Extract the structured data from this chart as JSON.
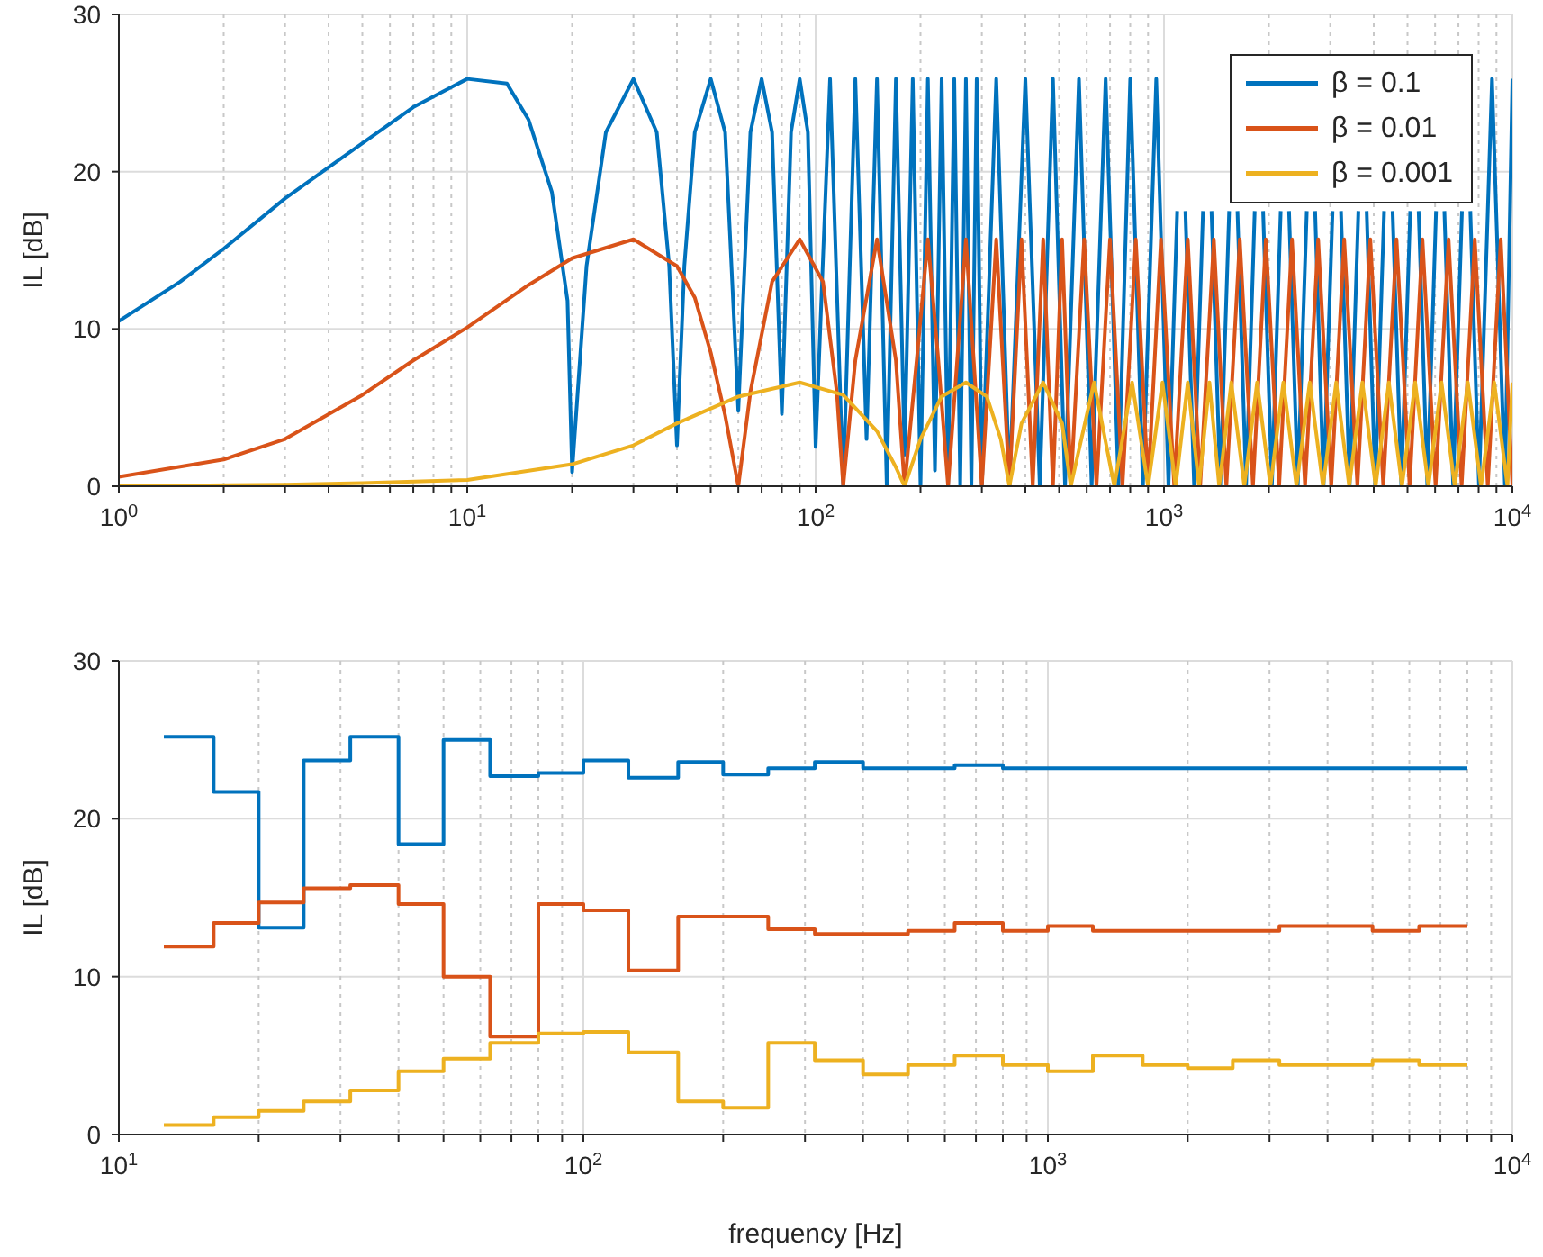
{
  "chart_data": [
    {
      "type": "line",
      "ylabel": "IL [dB]",
      "log": "x",
      "grid": true,
      "legend": "top right",
      "xlim": [
        1,
        10000
      ],
      "ylim": [
        0,
        30
      ],
      "yticks": [
        0,
        10,
        20,
        30
      ],
      "xticks": [
        {
          "value": 1,
          "label": "10$^{0}$"
        },
        {
          "value": 2,
          "label": null
        },
        {
          "value": 3,
          "label": null
        },
        {
          "value": 4,
          "label": null
        },
        {
          "value": 5,
          "label": null
        },
        {
          "value": 6,
          "label": null
        },
        {
          "value": 7,
          "label": null
        },
        {
          "value": 8,
          "label": null
        },
        {
          "value": 9,
          "label": null
        },
        {
          "value": 10,
          "label": "10$^{1}$"
        },
        {
          "value": 20,
          "label": null
        },
        {
          "value": 30,
          "label": null
        },
        {
          "value": 40,
          "label": null
        },
        {
          "value": 50,
          "label": null
        },
        {
          "value": 60,
          "label": null
        },
        {
          "value": 70,
          "label": null
        },
        {
          "value": 80,
          "label": null
        },
        {
          "value": 90,
          "label": null
        },
        {
          "value": 100,
          "label": "10$^{2}$"
        },
        {
          "value": 200,
          "label": null
        },
        {
          "value": 300,
          "label": null
        },
        {
          "value": 400,
          "label": null
        },
        {
          "value": 500,
          "label": null
        },
        {
          "value": 600,
          "label": null
        },
        {
          "value": 700,
          "label": null
        },
        {
          "value": 800,
          "label": null
        },
        {
          "value": 900,
          "label": null
        },
        {
          "value": 1000,
          "label": "10$^{3}$"
        },
        {
          "value": 2000,
          "label": null
        },
        {
          "value": 3000,
          "label": null
        },
        {
          "value": 4000,
          "label": null
        },
        {
          "value": 5000,
          "label": null
        },
        {
          "value": 6000,
          "label": null
        },
        {
          "value": 7000,
          "label": null
        },
        {
          "value": 8000,
          "label": null
        },
        {
          "value": 9000,
          "label": null
        },
        {
          "value": 10000,
          "label": "10$^{4}$"
        }
      ],
      "series": [
        {
          "name": "β = 0.1",
          "color": "#0072bd",
          "x": [
            1,
            1.5,
            2,
            3,
            5,
            7,
            10,
            13,
            15,
            17.5,
            19.4,
            20,
            22,
            25,
            30,
            35,
            38,
            40,
            42,
            45,
            50,
            55,
            60,
            65,
            70,
            75,
            80,
            85,
            90,
            95,
            100,
            110,
            120,
            130,
            140,
            150,
            160,
            170,
            180,
            190,
            200,
            210,
            220,
            230,
            240,
            250,
            260,
            270,
            280,
            290,
            300,
            330,
            360,
            400,
            440,
            480,
            520,
            570,
            620,
            680,
            740,
            800,
            870,
            950,
            1030,
            1091,
            1120,
            1152,
            1220,
            1294,
            1330,
            1369,
            1450,
            1538,
            1580,
            1625,
            1720,
            1821,
            1870,
            1925,
            2040,
            2162,
            2220,
            2285,
            2420,
            2569,
            2640,
            2715,
            2870,
            3046,
            3130,
            3221,
            3410,
            3613,
            3710,
            3817,
            4040,
            4283,
            4400,
            4530,
            4800,
            5091,
            5230,
            5382,
            5700,
            6038,
            6200,
            6381,
            6760,
            7166,
            7360,
            7574,
            8020,
            8740,
            9520,
            10000
          ],
          "values": [
            10.5,
            13,
            15.1,
            18.3,
            21.8,
            24.1,
            25.9,
            25.6,
            23.3,
            18.7,
            11.8,
            0.9,
            14,
            22.5,
            25.9,
            22.5,
            14,
            2.6,
            14,
            22.5,
            25.9,
            22.5,
            4.8,
            22.5,
            25.9,
            22.5,
            4.6,
            22.5,
            25.9,
            22.5,
            2.5,
            25.9,
            0,
            25.9,
            3,
            25.9,
            0,
            25.9,
            2,
            25.9,
            0,
            25.9,
            1,
            25.9,
            0,
            25.9,
            0,
            25.9,
            0,
            25.9,
            0,
            25.9,
            0,
            25.9,
            0,
            25.9,
            0,
            25.9,
            0,
            25.9,
            0,
            25.9,
            0,
            25.9,
            0,
            17.5,
            null,
            17.5,
            0,
            17.5,
            null,
            17.5,
            0,
            17.5,
            null,
            17.5,
            0,
            17.5,
            null,
            17.5,
            0,
            17.5,
            null,
            17.5,
            0,
            17.5,
            null,
            17.5,
            0,
            17.5,
            null,
            17.5,
            0,
            17.5,
            null,
            17.5,
            0,
            17.5,
            null,
            17.5,
            0,
            17.5,
            null,
            17.5,
            0,
            17.5,
            null,
            17.5,
            0,
            17.5,
            null,
            17.5,
            0,
            25.9,
            0,
            25.9
          ]
        },
        {
          "name": "β = 0.01",
          "color": "#d95319",
          "x": [
            1,
            2,
            3,
            5,
            7,
            10,
            15,
            20,
            30,
            40,
            45,
            50,
            55,
            60,
            65,
            75,
            90,
            105,
            115,
            120,
            130,
            150,
            170,
            180,
            195,
            210,
            225,
            240,
            270,
            300,
            330,
            360,
            390,
            420,
            450,
            480,
            510,
            540,
            590,
            640,
            700,
            760,
            830,
            900,
            980,
            1070,
            1170,
            1270,
            1390,
            1510,
            1650,
            1800,
            1960,
            2140,
            2330,
            2540,
            2770,
            3020,
            3290,
            3590,
            3910,
            4260,
            4650,
            5070,
            5520,
            6020,
            6560,
            7150,
            7800,
            8500,
            9260,
            10000
          ],
          "values": [
            0.6,
            1.7,
            3,
            5.8,
            8,
            10.1,
            12.8,
            14.5,
            15.7,
            14,
            12,
            8.5,
            4.5,
            0,
            6,
            13,
            15.7,
            13,
            6,
            0,
            8,
            15.7,
            8,
            0,
            8,
            15.7,
            8,
            0,
            15.7,
            0,
            15.7,
            0,
            15.7,
            0,
            15.7,
            0,
            15.7,
            0,
            15.7,
            0,
            15.7,
            0,
            15.7,
            0,
            15.7,
            0,
            15.7,
            0,
            15.7,
            0,
            15.7,
            0,
            15.7,
            0,
            15.7,
            0,
            15.7,
            0,
            15.7,
            0,
            15.7,
            0,
            15.7,
            0,
            15.7,
            0,
            15.7,
            0,
            15.7,
            0,
            15.7,
            0
          ]
        },
        {
          "name": "β = 0.001",
          "color": "#edb120",
          "x": [
            1,
            3,
            5,
            10,
            20,
            30,
            40,
            60,
            90,
            120,
            150,
            170,
            180,
            200,
            230,
            270,
            310,
            340,
            360,
            390,
            450,
            510,
            540,
            630,
            720,
            810,
            900,
            990,
            1080,
            1170,
            1260,
            1350,
            1440,
            1560,
            1700,
            1850,
            2020,
            2200,
            2400,
            2620,
            2860,
            3120,
            3400,
            3710,
            4050,
            4420,
            4820,
            5260,
            5740,
            6260,
            6830,
            7450,
            8130,
            8870,
            9680,
            10000
          ],
          "values": [
            0,
            0.1,
            0.2,
            0.4,
            1.4,
            2.6,
            4,
            5.7,
            6.6,
            5.8,
            3.5,
            1.2,
            0,
            3,
            5.7,
            6.6,
            5.7,
            3,
            0,
            4,
            6.6,
            4,
            0,
            6.6,
            0,
            6.6,
            0,
            6.6,
            0,
            6.6,
            0,
            6.6,
            0,
            6.6,
            0,
            6.6,
            0,
            6.6,
            0,
            6.6,
            0,
            6.6,
            0,
            6.6,
            0,
            6.6,
            0,
            6.6,
            0,
            6.6,
            0,
            6.6,
            0,
            6.6,
            0,
            6.6
          ]
        }
      ]
    },
    {
      "type": "step",
      "xlabel": "frequency [Hz]",
      "ylabel": "IL [dB]",
      "log": "x",
      "grid": true,
      "xlim": [
        10,
        10000
      ],
      "ylim": [
        0,
        30
      ],
      "yticks": [
        0,
        10,
        20,
        30
      ],
      "xticks": [
        {
          "value": 10,
          "label": "10$^{1}$"
        },
        {
          "value": 20,
          "label": null
        },
        {
          "value": 30,
          "label": null
        },
        {
          "value": 40,
          "label": null
        },
        {
          "value": 50,
          "label": null
        },
        {
          "value": 60,
          "label": null
        },
        {
          "value": 70,
          "label": null
        },
        {
          "value": 80,
          "label": null
        },
        {
          "value": 90,
          "label": null
        },
        {
          "value": 100,
          "label": "10$^{2}$"
        },
        {
          "value": 200,
          "label": null
        },
        {
          "value": 300,
          "label": null
        },
        {
          "value": 400,
          "label": null
        },
        {
          "value": 500,
          "label": null
        },
        {
          "value": 600,
          "label": null
        },
        {
          "value": 700,
          "label": null
        },
        {
          "value": 800,
          "label": null
        },
        {
          "value": 900,
          "label": null
        },
        {
          "value": 1000,
          "label": "10$^{3}$"
        },
        {
          "value": 2000,
          "label": null
        },
        {
          "value": 3000,
          "label": null
        },
        {
          "value": 4000,
          "label": null
        },
        {
          "value": 5000,
          "label": null
        },
        {
          "value": 6000,
          "label": null
        },
        {
          "value": 7000,
          "label": null
        },
        {
          "value": 8000,
          "label": null
        },
        {
          "value": 9000,
          "label": null
        },
        {
          "value": 10000,
          "label": "10$^{4}$"
        }
      ],
      "x": [
        12.5,
        16,
        20,
        25,
        31.5,
        40,
        50,
        63,
        80,
        100,
        125,
        160,
        200,
        250,
        315,
        400,
        500,
        630,
        800,
        1000,
        1250,
        1600,
        2000,
        2500,
        3150,
        4000,
        5000,
        6300,
        8000
      ],
      "series": [
        {
          "color": "#0072bd",
          "values": [
            25.2,
            21.7,
            13.1,
            23.7,
            25.2,
            18.4,
            25.0,
            22.7,
            22.9,
            23.7,
            22.6,
            23.6,
            22.8,
            23.2,
            23.6,
            23.2,
            23.2,
            23.4,
            23.2,
            23.2,
            23.2,
            23.2,
            23.2,
            23.2,
            23.2,
            23.2,
            23.2,
            23.2,
            23.2
          ]
        },
        {
          "color": "#d95319",
          "values": [
            11.9,
            13.4,
            14.7,
            15.6,
            15.8,
            14.6,
            10.0,
            6.2,
            14.6,
            14.2,
            10.4,
            13.8,
            13.8,
            13.0,
            12.7,
            12.7,
            12.9,
            13.4,
            12.9,
            13.2,
            12.9,
            12.9,
            12.9,
            12.9,
            13.2,
            13.2,
            12.9,
            13.2,
            13.2
          ]
        },
        {
          "color": "#edb120",
          "values": [
            0.6,
            1.1,
            1.5,
            2.1,
            2.8,
            4.0,
            4.8,
            5.8,
            6.4,
            6.5,
            5.2,
            2.1,
            1.7,
            5.8,
            4.7,
            3.8,
            4.4,
            5.0,
            4.4,
            4.0,
            5.0,
            4.4,
            4.2,
            4.7,
            4.4,
            4.4,
            4.7,
            4.4,
            4.4
          ]
        }
      ]
    }
  ]
}
